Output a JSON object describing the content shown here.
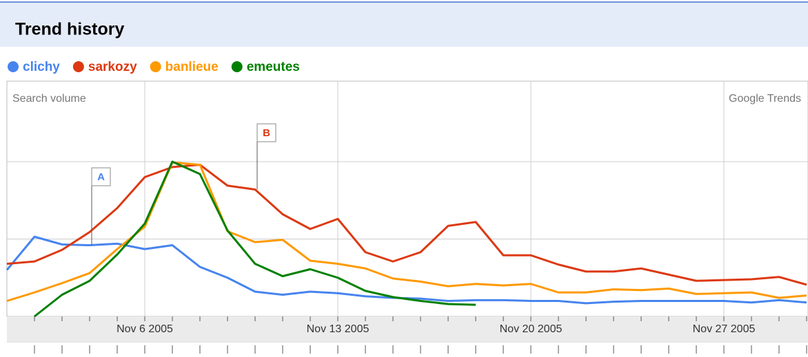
{
  "chart_data": {
    "type": "line",
    "title": "Trend history",
    "subtitle": "Search volume",
    "source": "Google Trends",
    "x": [
      1,
      2,
      3,
      4,
      5,
      6,
      7,
      8,
      9,
      10,
      11,
      12,
      13,
      14,
      15,
      16,
      17,
      18,
      19,
      20,
      21,
      22,
      23,
      24,
      25,
      26,
      27,
      28,
      29,
      30
    ],
    "xlim": [
      1,
      30.05
    ],
    "xticks": [
      {
        "value": 6,
        "label": "Nov 6 2005"
      },
      {
        "value": 13,
        "label": "Nov 13 2005"
      },
      {
        "value": 20,
        "label": "Nov 20 2005"
      },
      {
        "value": 27,
        "label": "Nov 27 2005"
      }
    ],
    "ylim": [
      0,
      3.04
    ],
    "yticks": [
      1,
      2
    ],
    "ytick_labels": false,
    "grid": true,
    "series": [
      {
        "name": "clichy",
        "color": "#4684ee",
        "values": [
          0.6,
          1.03,
          0.93,
          0.92,
          0.94,
          0.87,
          0.92,
          0.64,
          0.5,
          0.32,
          0.28,
          0.32,
          0.3,
          0.26,
          0.24,
          0.23,
          0.2,
          0.21,
          0.21,
          0.2,
          0.2,
          0.17,
          0.19,
          0.2,
          0.2,
          0.2,
          0.2,
          0.18,
          0.21,
          0.18
        ]
      },
      {
        "name": "sarkozy",
        "color": "#dc3912",
        "values": [
          0.68,
          0.71,
          0.86,
          1.09,
          1.4,
          1.8,
          1.93,
          1.96,
          1.69,
          1.64,
          1.32,
          1.13,
          1.26,
          0.83,
          0.71,
          0.83,
          1.17,
          1.22,
          0.79,
          0.79,
          0.67,
          0.58,
          0.58,
          0.62,
          0.54,
          0.46,
          0.47,
          0.48,
          0.51,
          0.41
        ]
      },
      {
        "name": "banlieue",
        "color": "#ff9900",
        "values": [
          0.2,
          0.31,
          0.43,
          0.56,
          0.87,
          1.16,
          1.99,
          1.96,
          1.1,
          0.96,
          0.99,
          0.72,
          0.68,
          0.62,
          0.49,
          0.45,
          0.39,
          0.42,
          0.4,
          0.42,
          0.31,
          0.31,
          0.35,
          0.34,
          0.36,
          0.29,
          0.3,
          0.31,
          0.24,
          0.27
        ]
      },
      {
        "name": "emeutes",
        "color": "#008000",
        "values": [
          null,
          0,
          0.28,
          0.46,
          0.8,
          1.2,
          2.0,
          1.84,
          1.11,
          0.68,
          0.52,
          0.61,
          0.5,
          0.33,
          0.25,
          0.2,
          0.16,
          0.15,
          null,
          null,
          null,
          null,
          null,
          null,
          null,
          null,
          null,
          null,
          null,
          null
        ]
      }
    ],
    "annotations": [
      {
        "label": "A",
        "series": 0,
        "x": 4
      },
      {
        "label": "B",
        "series": 1,
        "x": 10
      }
    ]
  }
}
